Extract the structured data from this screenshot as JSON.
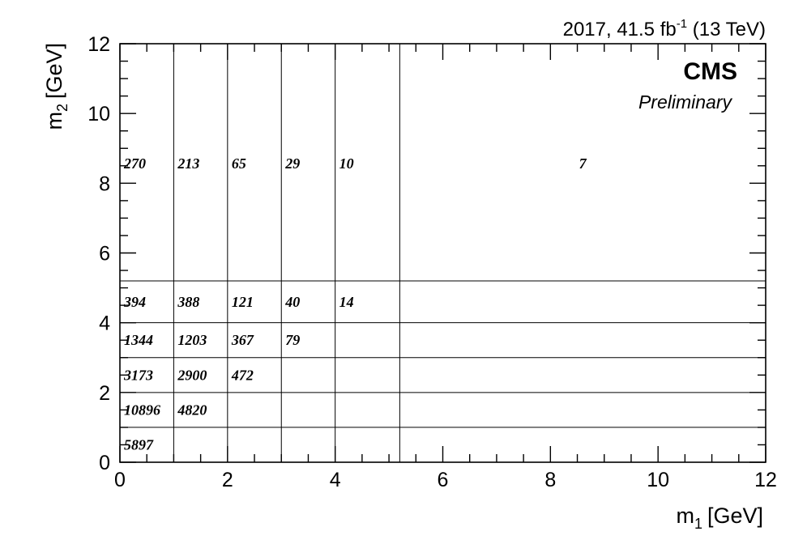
{
  "chart_data": {
    "type": "table",
    "title": "",
    "xlabel": "m",
    "xlabel_sub": "1",
    "xlabel_unit": "[GeV]",
    "ylabel": "m",
    "ylabel_sub": "2",
    "ylabel_unit": "[GeV]",
    "xlim": [
      0,
      12
    ],
    "ylim": [
      0,
      12
    ],
    "x_ticks": [
      "0",
      "2",
      "4",
      "6",
      "8",
      "10",
      "12"
    ],
    "y_ticks": [
      "0",
      "2",
      "4",
      "6",
      "8",
      "10",
      "12"
    ],
    "x_bin_edges": [
      0,
      1,
      2,
      3,
      4,
      5.2,
      12
    ],
    "y_bin_edges": [
      0,
      1,
      2,
      3,
      4,
      5.2,
      12
    ],
    "cells": [
      {
        "x_bin": 0,
        "y_bin": 0,
        "value": "5897"
      },
      {
        "x_bin": 0,
        "y_bin": 1,
        "value": "10896"
      },
      {
        "x_bin": 1,
        "y_bin": 1,
        "value": "4820"
      },
      {
        "x_bin": 0,
        "y_bin": 2,
        "value": "3173"
      },
      {
        "x_bin": 1,
        "y_bin": 2,
        "value": "2900"
      },
      {
        "x_bin": 2,
        "y_bin": 2,
        "value": "472"
      },
      {
        "x_bin": 0,
        "y_bin": 3,
        "value": "1344"
      },
      {
        "x_bin": 1,
        "y_bin": 3,
        "value": "1203"
      },
      {
        "x_bin": 2,
        "y_bin": 3,
        "value": "367"
      },
      {
        "x_bin": 3,
        "y_bin": 3,
        "value": "79"
      },
      {
        "x_bin": 0,
        "y_bin": 4,
        "value": "394"
      },
      {
        "x_bin": 1,
        "y_bin": 4,
        "value": "388"
      },
      {
        "x_bin": 2,
        "y_bin": 4,
        "value": "121"
      },
      {
        "x_bin": 3,
        "y_bin": 4,
        "value": "40"
      },
      {
        "x_bin": 4,
        "y_bin": 4,
        "value": "14"
      },
      {
        "x_bin": 0,
        "y_bin": 5,
        "value": "270"
      },
      {
        "x_bin": 1,
        "y_bin": 5,
        "value": "213"
      },
      {
        "x_bin": 2,
        "y_bin": 5,
        "value": "65"
      },
      {
        "x_bin": 3,
        "y_bin": 5,
        "value": "29"
      },
      {
        "x_bin": 4,
        "y_bin": 5,
        "value": "10"
      },
      {
        "x_bin": 5,
        "y_bin": 5,
        "value": "7"
      }
    ],
    "grid": false
  },
  "header": {
    "lumi_prefix": "2017, 41.5 fb",
    "lumi_exponent": "-1",
    "lumi_suffix": " (13 TeV)",
    "experiment": "CMS",
    "status": "Preliminary"
  }
}
